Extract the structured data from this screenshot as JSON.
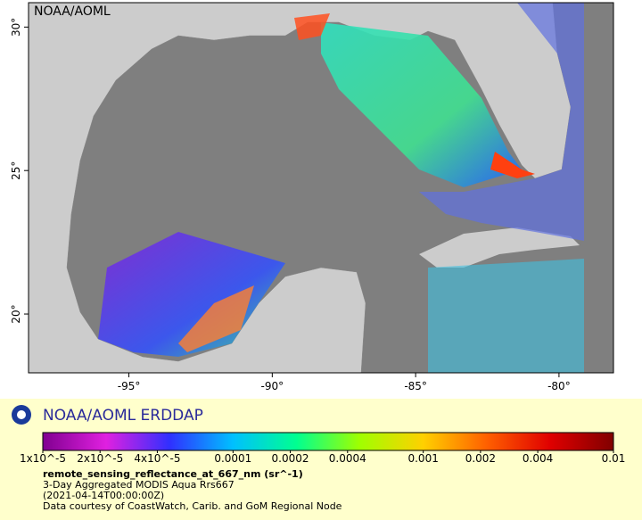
{
  "watermark": "NOAA/AOML",
  "map": {
    "lonlim": [
      -98.5,
      -78.1
    ],
    "latlim": [
      17.95,
      30.85
    ],
    "lonticks": [
      {
        "value": -95,
        "label": "-95°"
      },
      {
        "value": -90,
        "label": "-90°"
      },
      {
        "value": -85,
        "label": "-85°"
      },
      {
        "value": -80,
        "label": "-80°"
      }
    ],
    "latticks": [
      {
        "value": 20,
        "label": "20°"
      },
      {
        "value": 25,
        "label": "25°"
      },
      {
        "value": 30,
        "label": "30°"
      }
    ]
  },
  "legend": {
    "title": "NOAA/AOML ERDDAP",
    "scale": "log",
    "lim": [
      1e-05,
      0.01
    ],
    "ticks": [
      {
        "value": 1e-05,
        "label": "1x10^-5"
      },
      {
        "value": 2e-05,
        "label": "2x10^-5"
      },
      {
        "value": 4e-05,
        "label": "4x10^-5"
      },
      0.0001,
      0.0002,
      0.0004,
      0.001,
      0.002,
      0.004,
      0.01
    ],
    "colors": [
      "#800090",
      "#e020e0",
      "#3030ff",
      "#00c0ff",
      "#00ff90",
      "#a0ff00",
      "#ffd000",
      "#ff6000",
      "#e00000",
      "#800000"
    ]
  },
  "caption": {
    "variable": "remote_sensing_reflectance_at_667_nm (sr^-1)",
    "dataset": "3-Day Aggregated MODIS Aqua Rrs667",
    "time": "(2021-04-14T00:00:00Z)",
    "credit": "Data courtesy of CoastWatch, Carib. and GoM Regional Node"
  }
}
